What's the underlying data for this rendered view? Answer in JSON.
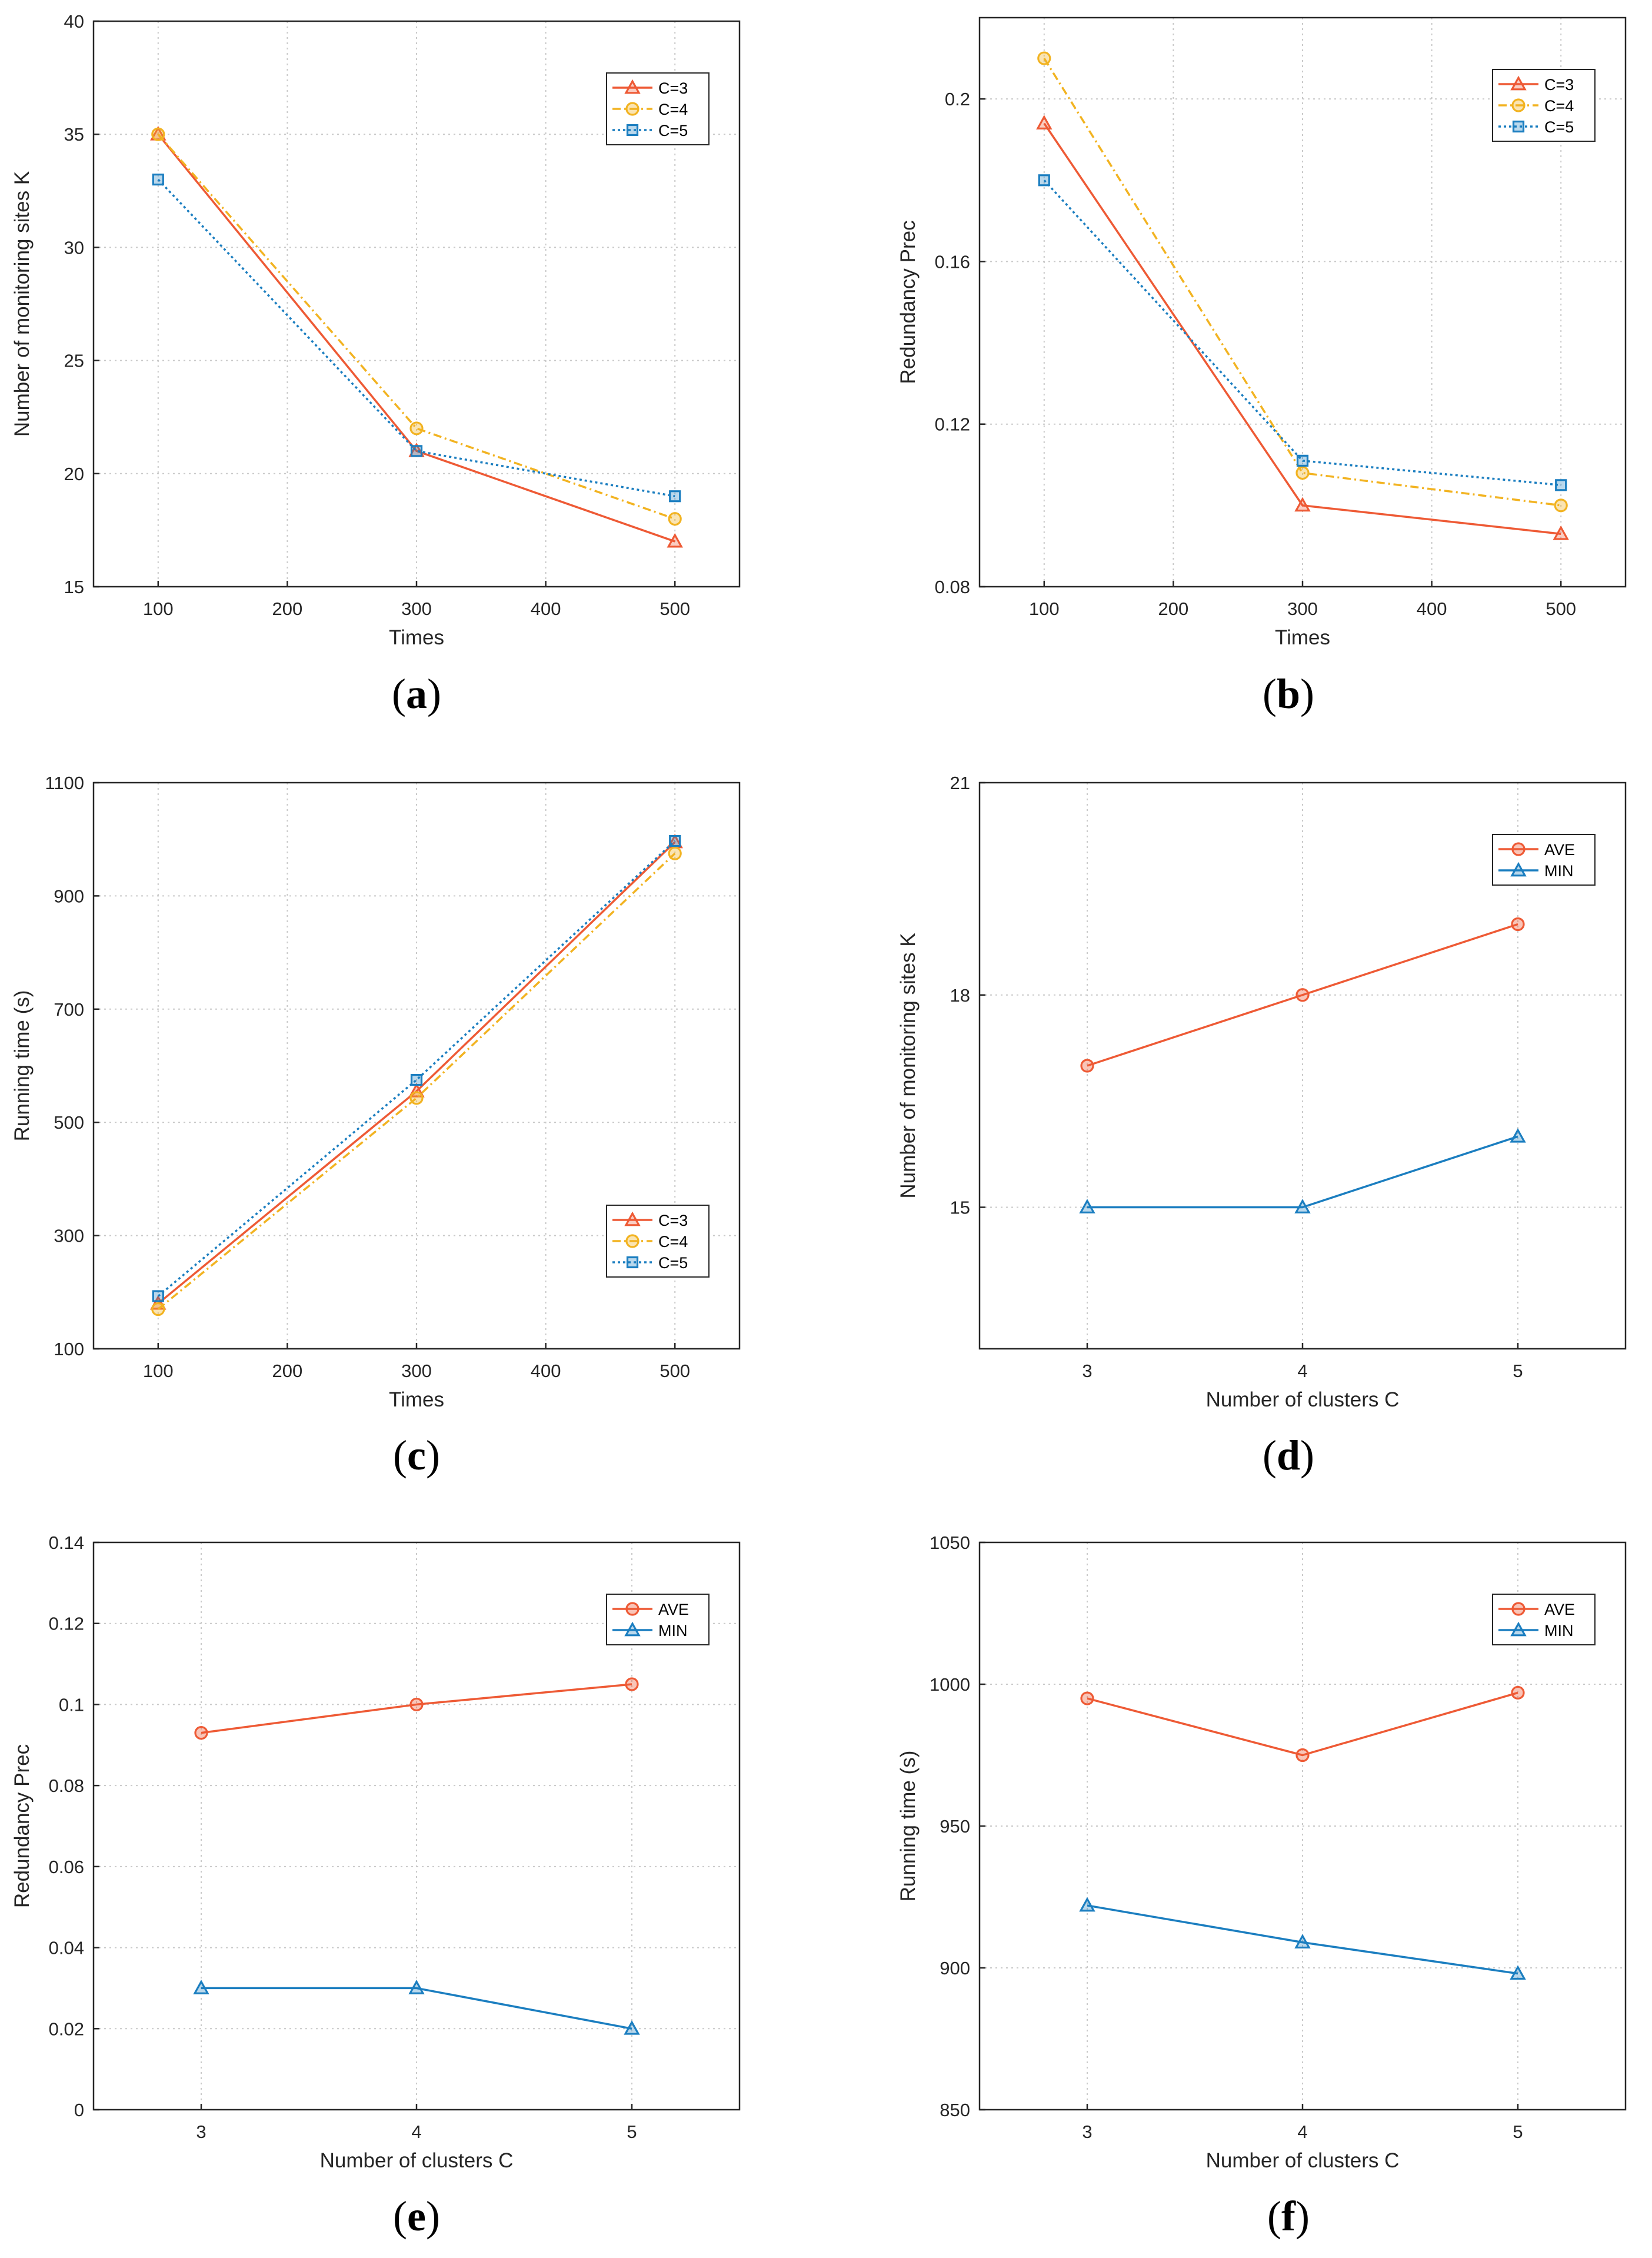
{
  "chart_data": [
    {
      "panel": "a",
      "type": "line",
      "xlabel": "Times",
      "ylabel": "Number of monitoring sites K",
      "xlim": [
        50,
        550
      ],
      "ylim": [
        15,
        40
      ],
      "xticks": [
        100,
        200,
        300,
        400,
        500
      ],
      "yticks": [
        15,
        20,
        25,
        30,
        35,
        40
      ],
      "grid": true,
      "legend_position": "top-right",
      "x": [
        100,
        300,
        500
      ],
      "series": [
        {
          "name": "C=3",
          "values": [
            35,
            21,
            17
          ],
          "color": "#ee5a35",
          "marker": "triangle",
          "dash": "solid"
        },
        {
          "name": "C=4",
          "values": [
            35,
            22,
            18
          ],
          "color": "#f2b321",
          "marker": "circle",
          "dash": "dashdot"
        },
        {
          "name": "C=5",
          "values": [
            33,
            21,
            19
          ],
          "color": "#1b7ec0",
          "marker": "square",
          "dash": "dotted"
        }
      ],
      "caption": "a"
    },
    {
      "panel": "b",
      "type": "line",
      "xlabel": "Times",
      "ylabel": "Redundancy Prec",
      "xlim": [
        50,
        550
      ],
      "ylim": [
        0.08,
        0.22
      ],
      "xticks": [
        100,
        200,
        300,
        400,
        500
      ],
      "yticks": [
        0.08,
        0.12,
        0.16,
        0.2
      ],
      "yticklabels": [
        "0.08",
        "0.12",
        "0.16",
        "0.2"
      ],
      "grid": true,
      "legend_position": "top-right",
      "x": [
        100,
        300,
        500
      ],
      "series": [
        {
          "name": "C=3",
          "values": [
            0.194,
            0.1,
            0.093
          ],
          "color": "#ee5a35",
          "marker": "triangle",
          "dash": "solid"
        },
        {
          "name": "C=4",
          "values": [
            0.21,
            0.108,
            0.1
          ],
          "color": "#f2b321",
          "marker": "circle",
          "dash": "dashdot"
        },
        {
          "name": "C=5",
          "values": [
            0.18,
            0.111,
            0.105
          ],
          "color": "#1b7ec0",
          "marker": "square",
          "dash": "dotted"
        }
      ],
      "caption": "b"
    },
    {
      "panel": "c",
      "type": "line",
      "xlabel": "Times",
      "ylabel": "Running time (s)",
      "xlim": [
        50,
        550
      ],
      "ylim": [
        100,
        1100
      ],
      "xticks": [
        100,
        200,
        300,
        400,
        500
      ],
      "yticks": [
        100,
        300,
        500,
        700,
        900,
        1100
      ],
      "grid": true,
      "legend_position": "bottom-right",
      "x": [
        100,
        300,
        500
      ],
      "series": [
        {
          "name": "C=3",
          "values": [
            180,
            555,
            995
          ],
          "color": "#ee5a35",
          "marker": "triangle",
          "dash": "solid"
        },
        {
          "name": "C=4",
          "values": [
            170,
            543,
            975
          ],
          "color": "#f2b321",
          "marker": "circle",
          "dash": "dashdot"
        },
        {
          "name": "C=5",
          "values": [
            193,
            575,
            997
          ],
          "color": "#1b7ec0",
          "marker": "square",
          "dash": "dotted"
        }
      ],
      "caption": "c"
    },
    {
      "panel": "d",
      "type": "line",
      "xlabel": "Number of clusters C",
      "ylabel": "Number of monitoring sites K",
      "xlim": [
        2.5,
        5.5
      ],
      "ylim": [
        13,
        21
      ],
      "xticks": [
        3,
        4,
        5
      ],
      "yticks": [
        15,
        18,
        21
      ],
      "grid": true,
      "legend_position": "top-right",
      "x": [
        3,
        4,
        5
      ],
      "series": [
        {
          "name": "AVE",
          "values": [
            17,
            18,
            19
          ],
          "color": "#ee5a35",
          "marker": "circle",
          "dash": "solid"
        },
        {
          "name": "MIN",
          "values": [
            15,
            15,
            16
          ],
          "color": "#1b7ec0",
          "marker": "triangle",
          "dash": "solid"
        }
      ],
      "caption": "d"
    },
    {
      "panel": "e",
      "type": "line",
      "xlabel": "Number of clusters C",
      "ylabel": "Redundancy Prec",
      "xlim": [
        2.5,
        5.5
      ],
      "ylim": [
        0,
        0.14
      ],
      "xticks": [
        3,
        4,
        5
      ],
      "yticks": [
        0,
        0.02,
        0.04,
        0.06,
        0.08,
        0.1,
        0.12,
        0.14
      ],
      "yticklabels": [
        "0",
        "0.02",
        "0.04",
        "0.06",
        "0.08",
        "0.1",
        "0.12",
        "0.14"
      ],
      "grid": true,
      "legend_position": "top-right",
      "x": [
        3,
        4,
        5
      ],
      "series": [
        {
          "name": "AVE",
          "values": [
            0.093,
            0.1,
            0.105
          ],
          "color": "#ee5a35",
          "marker": "circle",
          "dash": "solid"
        },
        {
          "name": "MIN",
          "values": [
            0.03,
            0.03,
            0.02
          ],
          "color": "#1b7ec0",
          "marker": "triangle",
          "dash": "solid"
        }
      ],
      "caption": "e"
    },
    {
      "panel": "f",
      "type": "line",
      "xlabel": "Number of clusters C",
      "ylabel": "Running time (s)",
      "xlim": [
        2.5,
        5.5
      ],
      "ylim": [
        850,
        1050
      ],
      "xticks": [
        3,
        4,
        5
      ],
      "yticks": [
        850,
        900,
        950,
        1000,
        1050
      ],
      "grid": true,
      "legend_position": "top-right",
      "x": [
        3,
        4,
        5
      ],
      "series": [
        {
          "name": "AVE",
          "values": [
            995,
            975,
            997
          ],
          "color": "#ee5a35",
          "marker": "circle",
          "dash": "solid"
        },
        {
          "name": "MIN",
          "values": [
            922,
            909,
            898
          ],
          "color": "#1b7ec0",
          "marker": "triangle",
          "dash": "solid"
        }
      ],
      "caption": "f"
    }
  ]
}
